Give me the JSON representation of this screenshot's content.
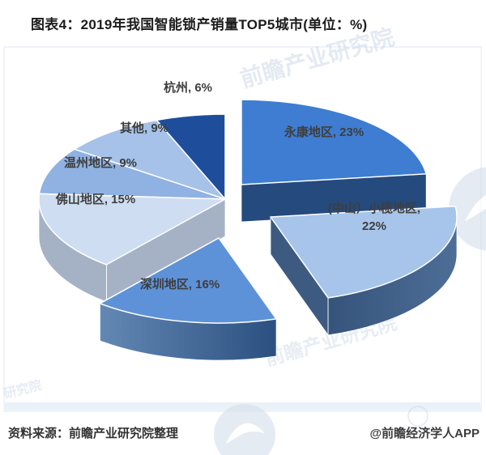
{
  "title": "图表4：2019年我国智能锁产销量TOP5城市(单位：%)",
  "footer": {
    "source": "资料来源：前瞻产业研究院整理",
    "credit": "@前瞻经济学人APP"
  },
  "watermark_text": "前瞻产业研究院",
  "chart_data": {
    "type": "pie",
    "style": "3d-exploded",
    "title": "2019年我国智能锁产销量TOP5城市",
    "unit": "%",
    "direction": "clockwise",
    "start_angle_deg": 0,
    "legend_position": "none",
    "label_format": "{label}, {value}%",
    "slices": [
      {
        "label": "永康地区",
        "value": 23,
        "color": "#3E7DD1",
        "side_color": "#254A7D",
        "exploded": true
      },
      {
        "label": "(中山）小榄地区",
        "value": 22,
        "color": "#A7C4EA",
        "side_color": "#3D5B80",
        "exploded": true
      },
      {
        "label": "深圳地区",
        "value": 16,
        "color": "#5E92D8",
        "side_color": "#3A66A0",
        "exploded": true
      },
      {
        "label": "佛山地区",
        "value": 15,
        "color": "#CEDDF1",
        "side_color": "#A5B2C6",
        "exploded": false
      },
      {
        "label": "温州地区",
        "value": 9,
        "color": "#8FB2E2",
        "side_color": "#6E8FBC",
        "exploded": false
      },
      {
        "label": "其他",
        "value": 9,
        "color": "#A6C2E9",
        "side_color": "#7E9CC6",
        "exploded": false
      },
      {
        "label": "杭州",
        "value": 6,
        "color": "#1E4E9B",
        "side_color": "#15396F",
        "exploded": false
      }
    ]
  }
}
